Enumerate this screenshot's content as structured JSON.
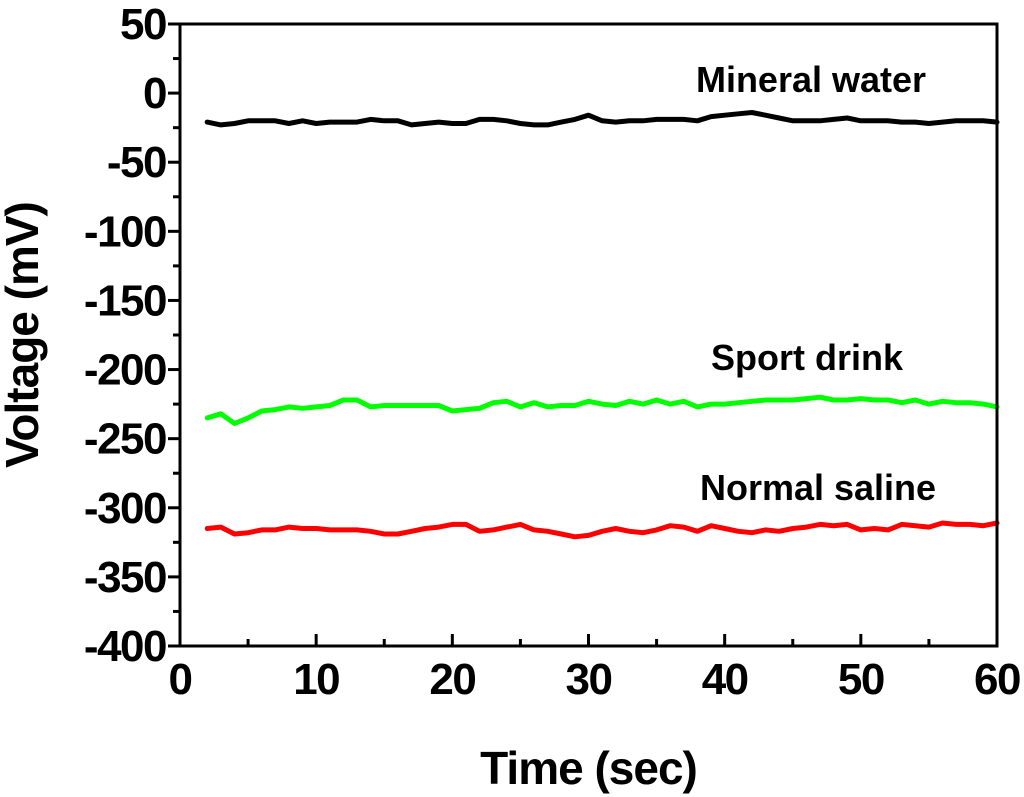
{
  "chart_data": {
    "type": "line",
    "title": "",
    "xlabel": "Time (sec)",
    "ylabel": "Voltage (mV)",
    "xlim": [
      0,
      60
    ],
    "ylim": [
      -400,
      50
    ],
    "xticks": [
      0,
      10,
      20,
      30,
      40,
      50,
      60
    ],
    "yticks": [
      50,
      0,
      -50,
      -100,
      -150,
      -200,
      -250,
      -300,
      -350,
      -400
    ],
    "x_minor_step": 5,
    "y_minor_step": 25,
    "grid": false,
    "legend": "none",
    "series": [
      {
        "name": "Mineral water",
        "color": "#000000",
        "x": [
          2,
          3,
          4,
          5,
          6,
          7,
          8,
          9,
          10,
          11,
          12,
          13,
          14,
          15,
          16,
          17,
          18,
          19,
          20,
          21,
          22,
          23,
          24,
          25,
          26,
          27,
          28,
          29,
          30,
          31,
          32,
          33,
          34,
          35,
          36,
          37,
          38,
          39,
          40,
          41,
          42,
          43,
          44,
          45,
          46,
          47,
          48,
          49,
          50,
          51,
          52,
          53,
          54,
          55,
          56,
          57,
          58,
          59,
          60
        ],
        "y": [
          -21,
          -23,
          -22,
          -20,
          -20,
          -20,
          -22,
          -20,
          -22,
          -21,
          -21,
          -21,
          -19,
          -20,
          -20,
          -23,
          -22,
          -21,
          -22,
          -22,
          -19,
          -19,
          -20,
          -22,
          -23,
          -23,
          -21,
          -19,
          -16,
          -20,
          -21,
          -20,
          -20,
          -19,
          -19,
          -19,
          -20,
          -17,
          -16,
          -15,
          -14,
          -16,
          -18,
          -20,
          -20,
          -20,
          -19,
          -18,
          -20,
          -20,
          -20,
          -21,
          -21,
          -22,
          -21,
          -20,
          -20,
          -20,
          -21
        ]
      },
      {
        "name": "Sport drink",
        "color": "#00ff00",
        "x": [
          2,
          3,
          4,
          5,
          6,
          7,
          8,
          9,
          10,
          11,
          12,
          13,
          14,
          15,
          16,
          17,
          18,
          19,
          20,
          21,
          22,
          23,
          24,
          25,
          26,
          27,
          28,
          29,
          30,
          31,
          32,
          33,
          34,
          35,
          36,
          37,
          38,
          39,
          40,
          41,
          42,
          43,
          44,
          45,
          46,
          47,
          48,
          49,
          50,
          51,
          52,
          53,
          54,
          55,
          56,
          57,
          58,
          59,
          60
        ],
        "y": [
          -235,
          -232,
          -239,
          -235,
          -230,
          -229,
          -227,
          -228,
          -227,
          -226,
          -222,
          -222,
          -227,
          -226,
          -226,
          -226,
          -226,
          -226,
          -230,
          -229,
          -228,
          -224,
          -223,
          -227,
          -224,
          -227,
          -226,
          -226,
          -223,
          -225,
          -226,
          -223,
          -225,
          -222,
          -225,
          -223,
          -227,
          -225,
          -225,
          -224,
          -223,
          -222,
          -222,
          -222,
          -221,
          -220,
          -222,
          -222,
          -221,
          -222,
          -222,
          -224,
          -222,
          -225,
          -223,
          -224,
          -224,
          -225,
          -227
        ]
      },
      {
        "name": "Normal saline",
        "color": "#ff0000",
        "x": [
          2,
          3,
          4,
          5,
          6,
          7,
          8,
          9,
          10,
          11,
          12,
          13,
          14,
          15,
          16,
          17,
          18,
          19,
          20,
          21,
          22,
          23,
          24,
          25,
          26,
          27,
          28,
          29,
          30,
          31,
          32,
          33,
          34,
          35,
          36,
          37,
          38,
          39,
          40,
          41,
          42,
          43,
          44,
          45,
          46,
          47,
          48,
          49,
          50,
          51,
          52,
          53,
          54,
          55,
          56,
          57,
          58,
          59,
          60
        ],
        "y": [
          -315,
          -314,
          -319,
          -318,
          -316,
          -316,
          -314,
          -315,
          -315,
          -316,
          -316,
          -316,
          -317,
          -319,
          -319,
          -317,
          -315,
          -314,
          -312,
          -312,
          -317,
          -316,
          -314,
          -312,
          -316,
          -317,
          -319,
          -321,
          -320,
          -317,
          -315,
          -317,
          -318,
          -316,
          -313,
          -314,
          -317,
          -313,
          -315,
          -317,
          -318,
          -316,
          -317,
          -315,
          -314,
          -312,
          -313,
          -312,
          -316,
          -315,
          -316,
          -312,
          -313,
          -314,
          -311,
          -312,
          -312,
          -313,
          -311
        ]
      }
    ],
    "annotations": [
      {
        "text": "Mineral water",
        "series": "Mineral water"
      },
      {
        "text": "Sport drink",
        "series": "Sport drink"
      },
      {
        "text": "Normal saline",
        "series": "Normal saline"
      }
    ]
  }
}
